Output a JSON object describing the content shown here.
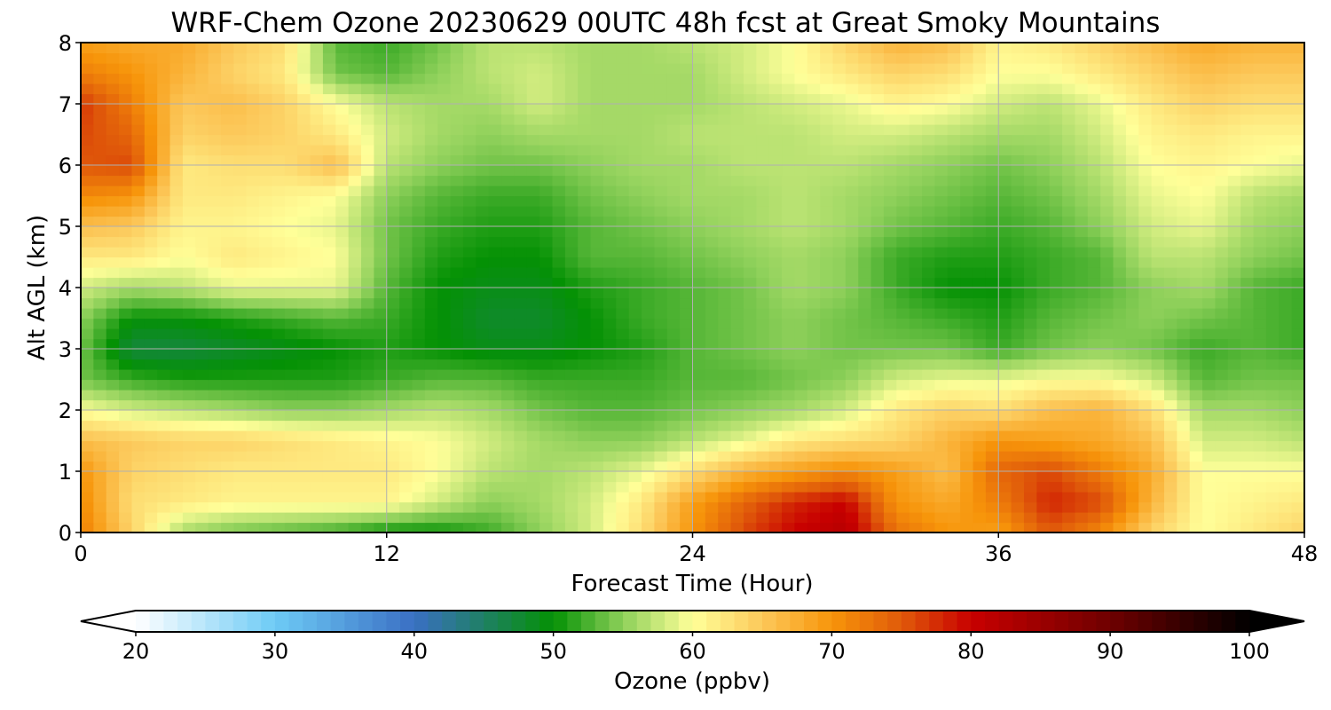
{
  "chart_data": {
    "type": "heatmap",
    "title": "WRF-Chem Ozone  20230629 00UTC 48h fcst at Great Smoky Mountains",
    "xlabel": "Forecast Time (Hour)",
    "ylabel": "Alt AGL (km)",
    "xlim": [
      0,
      48
    ],
    "ylim": [
      0,
      8
    ],
    "xticks": [
      0,
      12,
      24,
      36,
      48
    ],
    "yticks": [
      0,
      1,
      2,
      3,
      4,
      5,
      6,
      7,
      8
    ],
    "grid": true,
    "colorbar": {
      "label": "Ozone  (ppbv)",
      "min": 20,
      "max": 100,
      "ticks": [
        20,
        30,
        40,
        50,
        60,
        70,
        80,
        90,
        100
      ],
      "extend": "both",
      "stops": [
        {
          "value": 20,
          "color": "#ffffff"
        },
        {
          "value": 30,
          "color": "#6ecbf5"
        },
        {
          "value": 40,
          "color": "#3a6fc4"
        },
        {
          "value": 50,
          "color": "#049104"
        },
        {
          "value": 55,
          "color": "#8ed05a"
        },
        {
          "value": 60,
          "color": "#ffff99"
        },
        {
          "value": 65,
          "color": "#fcc85a"
        },
        {
          "value": 70,
          "color": "#f7950a"
        },
        {
          "value": 75,
          "color": "#e05a0a"
        },
        {
          "value": 80,
          "color": "#c80000"
        },
        {
          "value": 90,
          "color": "#6e0000"
        },
        {
          "value": 100,
          "color": "#000000"
        }
      ]
    },
    "x": [
      0,
      2,
      4,
      6,
      8,
      10,
      12,
      14,
      16,
      18,
      20,
      22,
      24,
      26,
      28,
      30,
      32,
      34,
      36,
      38,
      40,
      42,
      44,
      46,
      48
    ],
    "y": [
      0,
      0.5,
      1,
      1.5,
      2,
      2.5,
      3,
      3.5,
      4,
      4.5,
      5,
      5.5,
      6,
      6.5,
      7,
      7.5,
      8
    ],
    "z": [
      [
        72,
        64,
        56,
        54,
        53,
        52,
        50,
        50,
        52,
        55,
        58,
        63,
        70,
        76,
        80,
        82,
        73,
        70,
        69,
        75,
        71,
        64,
        60,
        62,
        64
      ],
      [
        71,
        63,
        62,
        61,
        61,
        61,
        61,
        58,
        55,
        56,
        58,
        62,
        69,
        74,
        78,
        80,
        70,
        68,
        72,
        78,
        76,
        67,
        60,
        61,
        62
      ],
      [
        70,
        64,
        63,
        62,
        62,
        62,
        62,
        60,
        57,
        56,
        57,
        59,
        63,
        67,
        69,
        71,
        69,
        66,
        74,
        76,
        72,
        68,
        60,
        60,
        60
      ],
      [
        66,
        65,
        64,
        64,
        63,
        62,
        61,
        60,
        58,
        56,
        55,
        55,
        57,
        59,
        62,
        63,
        64,
        67,
        70,
        69,
        68,
        66,
        58,
        58,
        57
      ],
      [
        60,
        58,
        57,
        56,
        55,
        55,
        56,
        57,
        56,
        54,
        53,
        53,
        54,
        55,
        56,
        58,
        62,
        64,
        63,
        66,
        67,
        63,
        56,
        56,
        55
      ],
      [
        54,
        52,
        51,
        51,
        51,
        51,
        52,
        53,
        53,
        52,
        52,
        52,
        53,
        53,
        54,
        55,
        58,
        59,
        59,
        60,
        60,
        58,
        53,
        54,
        54
      ],
      [
        54,
        47,
        47,
        48,
        49,
        50,
        51,
        50,
        49,
        49,
        50,
        51,
        53,
        54,
        55,
        54,
        54,
        54,
        52,
        54,
        55,
        54,
        52,
        53,
        52
      ],
      [
        55,
        50,
        50,
        51,
        52,
        53,
        52,
        50,
        48,
        48,
        50,
        52,
        53,
        54,
        55,
        54,
        53,
        52,
        51,
        53,
        54,
        55,
        54,
        53,
        52
      ],
      [
        58,
        56,
        57,
        59,
        59,
        59,
        53,
        50,
        49,
        49,
        51,
        52,
        53,
        54,
        56,
        55,
        52,
        50,
        50,
        52,
        53,
        55,
        56,
        53,
        52
      ],
      [
        62,
        62,
        60,
        62,
        61,
        60,
        54,
        51,
        50,
        50,
        53,
        53,
        54,
        55,
        56,
        55,
        52,
        51,
        51,
        52,
        53,
        57,
        57,
        55,
        54
      ],
      [
        66,
        65,
        61,
        61,
        60,
        59,
        54,
        52,
        51,
        51,
        53,
        54,
        55,
        56,
        57,
        56,
        54,
        53,
        52,
        53,
        55,
        58,
        59,
        56,
        55
      ],
      [
        71,
        70,
        62,
        62,
        61,
        60,
        55,
        53,
        52,
        52,
        54,
        55,
        56,
        56,
        57,
        56,
        55,
        54,
        53,
        54,
        56,
        59,
        60,
        57,
        56
      ],
      [
        75,
        76,
        62,
        63,
        63,
        66,
        57,
        55,
        54,
        54,
        55,
        56,
        56,
        57,
        57,
        57,
        56,
        55,
        54,
        55,
        57,
        60,
        61,
        60,
        59
      ],
      [
        76,
        74,
        64,
        65,
        64,
        62,
        58,
        56,
        55,
        56,
        56,
        56,
        57,
        57,
        57,
        58,
        58,
        57,
        56,
        56,
        58,
        61,
        62,
        61,
        61
      ],
      [
        77,
        72,
        65,
        66,
        64,
        60,
        57,
        56,
        56,
        58,
        56,
        56,
        56,
        57,
        58,
        59,
        61,
        60,
        58,
        57,
        59,
        62,
        64,
        63,
        63
      ],
      [
        72,
        70,
        67,
        64,
        62,
        54,
        53,
        55,
        57,
        58,
        56,
        56,
        56,
        58,
        60,
        62,
        64,
        63,
        60,
        60,
        62,
        64,
        66,
        65,
        65
      ],
      [
        69,
        68,
        68,
        65,
        63,
        53,
        52,
        54,
        57,
        57,
        56,
        56,
        57,
        58,
        60,
        64,
        67,
        66,
        61,
        62,
        64,
        66,
        68,
        67,
        67
      ]
    ]
  }
}
